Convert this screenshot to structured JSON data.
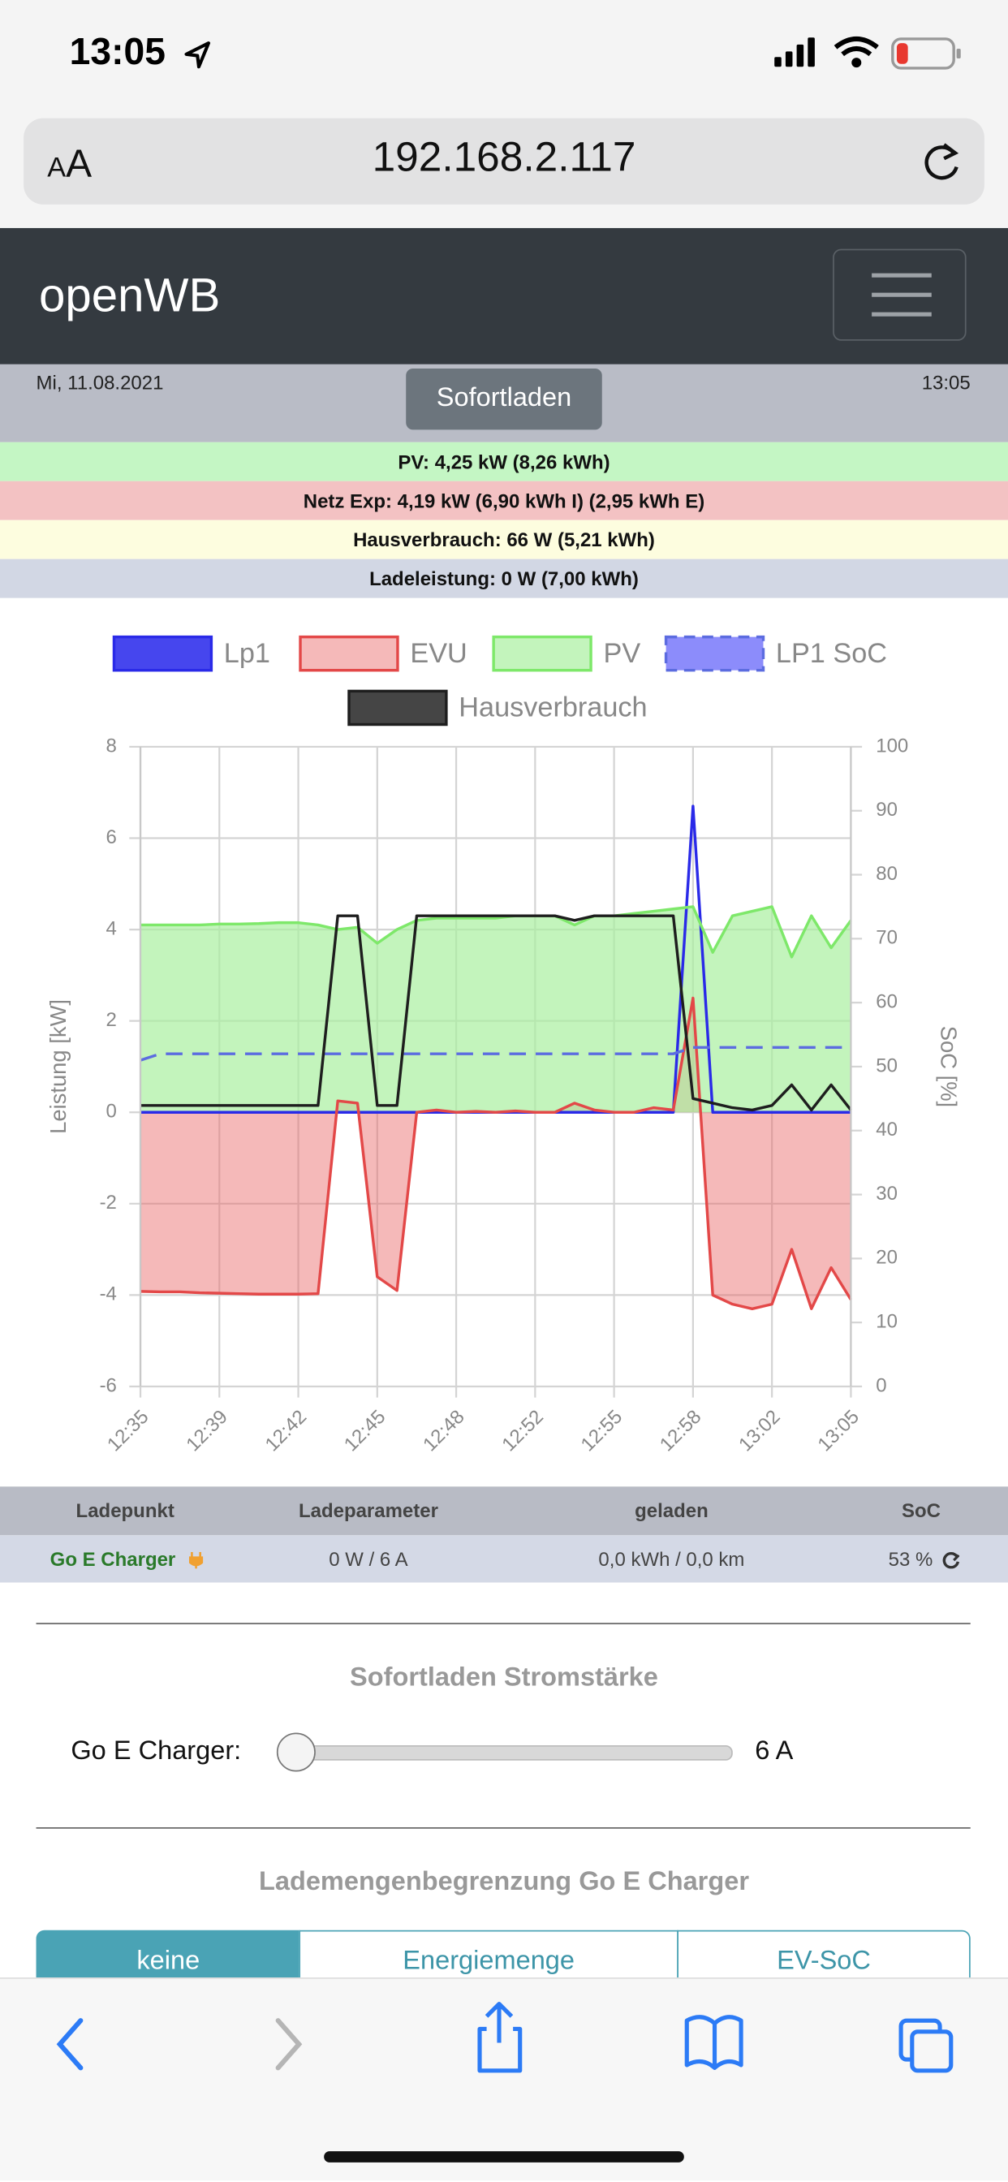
{
  "status_bar": {
    "time": "13:05"
  },
  "browser": {
    "text_size": "AA",
    "url": "192.168.2.117"
  },
  "navbar": {
    "brand": "openWB"
  },
  "header": {
    "date": "Mi, 11.08.2021",
    "mode": "Sofortladen",
    "time": "13:05"
  },
  "info": [
    "PV: 4,25 kW (8,26 kWh)",
    "Netz Exp: 4,19 kW (6,90 kWh I) (2,95 kWh E)",
    "Hausverbrauch: 66 W (5,21 kWh)",
    "Ladeleistung: 0 W (7,00 kWh)"
  ],
  "chart_data": {
    "type": "line",
    "y_label": "Leistung [kW]",
    "y2_label": "SoC [%]",
    "categories": [
      "12:35",
      null,
      null,
      null,
      "12:39",
      null,
      null,
      null,
      "12:42",
      null,
      null,
      null,
      "12:45",
      null,
      null,
      null,
      "12:48",
      null,
      null,
      null,
      "12:52",
      null,
      null,
      null,
      "12:55",
      null,
      null,
      null,
      "12:58",
      null,
      null,
      null,
      "13:02",
      null,
      null,
      null,
      "13:05"
    ],
    "ylim": [
      -6,
      8
    ],
    "yticks": [
      -6,
      -4,
      -2,
      0,
      2,
      4,
      6,
      8
    ],
    "y2lim": [
      0,
      100
    ],
    "y2ticks": [
      0,
      10,
      20,
      30,
      40,
      50,
      60,
      70,
      80,
      90,
      100
    ],
    "grid": true,
    "series": [
      {
        "name": "Lp1",
        "color": "#2a2ae8",
        "fill": "#4646ee",
        "area": false,
        "values": [
          0,
          0,
          0,
          0,
          0,
          0,
          0,
          0,
          0,
          0,
          0,
          0,
          0,
          0,
          0,
          0,
          0,
          0,
          0,
          0,
          0,
          0,
          0,
          0,
          0,
          0,
          0,
          0,
          6.7,
          0,
          0,
          0,
          0,
          0,
          0,
          0,
          0
        ]
      },
      {
        "name": "EVU",
        "color": "#e34848",
        "fill": "rgba(232,100,100,0.45)",
        "area": true,
        "values": [
          -3.92,
          -3.93,
          -3.93,
          -3.95,
          -3.96,
          -3.97,
          -3.98,
          -3.98,
          -3.98,
          -3.97,
          0.25,
          0.2,
          -3.6,
          -3.9,
          0,
          0.05,
          0,
          0.02,
          0,
          0.03,
          0,
          0,
          0.2,
          0.05,
          0,
          0,
          0.1,
          0.05,
          2.5,
          -4,
          -4.2,
          -4.3,
          -4.2,
          -3,
          -4.3,
          -3.4,
          -4.1
        ]
      },
      {
        "name": "PV",
        "color": "#7ee86a",
        "fill": "rgba(170,240,160,0.7)",
        "area": true,
        "values": [
          4.1,
          4.1,
          4.1,
          4.1,
          4.12,
          4.12,
          4.13,
          4.15,
          4.15,
          4.1,
          4,
          4.05,
          3.7,
          4,
          4.2,
          4.25,
          4.25,
          4.25,
          4.25,
          4.3,
          4.3,
          4.3,
          4.1,
          4.3,
          4.3,
          4.35,
          4.4,
          4.45,
          4.5,
          3.5,
          4.3,
          4.4,
          4.5,
          3.4,
          4.3,
          3.6,
          4.2
        ]
      },
      {
        "name": "LP1 SoC",
        "color": "#5c6ce0",
        "fill": "rgba(120,120,250,0.85)",
        "area": false,
        "dashed": true,
        "axis": "y2",
        "values": [
          51,
          52,
          52,
          52,
          52,
          52,
          52,
          52,
          52,
          52,
          52,
          52,
          52,
          52,
          52,
          52,
          52,
          52,
          52,
          52,
          52,
          52,
          52,
          52,
          52,
          52,
          52,
          52,
          53,
          53,
          53,
          53,
          53,
          53,
          53,
          53,
          53
        ]
      },
      {
        "name": "Hausverbrauch",
        "color": "#1e1e1e",
        "fill": "#454545",
        "area": false,
        "values": [
          0.15,
          0.15,
          0.15,
          0.15,
          0.15,
          0.15,
          0.15,
          0.15,
          0.15,
          0.15,
          4.3,
          4.3,
          0.15,
          0.15,
          4.3,
          4.3,
          4.3,
          4.3,
          4.3,
          4.3,
          4.3,
          4.3,
          4.2,
          4.3,
          4.3,
          4.3,
          4.3,
          4.3,
          0.3,
          0.2,
          0.1,
          0.05,
          0.15,
          0.6,
          0.05,
          0.6,
          0.05
        ]
      }
    ]
  },
  "table": {
    "headers": [
      "Ladepunkt",
      "Ladeparameter",
      "geladen",
      "SoC"
    ],
    "rows": [
      [
        "Go E Charger",
        "0 W / 6 A",
        "0,0 kWh / 0,0 km",
        "53 %"
      ]
    ]
  },
  "current": {
    "title": "Sofortladen Stromstärke",
    "label": "Go E Charger:",
    "value": "6 A"
  },
  "limit": {
    "title": "Lademengenbegrenzung Go E Charger",
    "tabs": [
      "keine",
      "Energiemenge",
      "EV-SoC"
    ]
  }
}
